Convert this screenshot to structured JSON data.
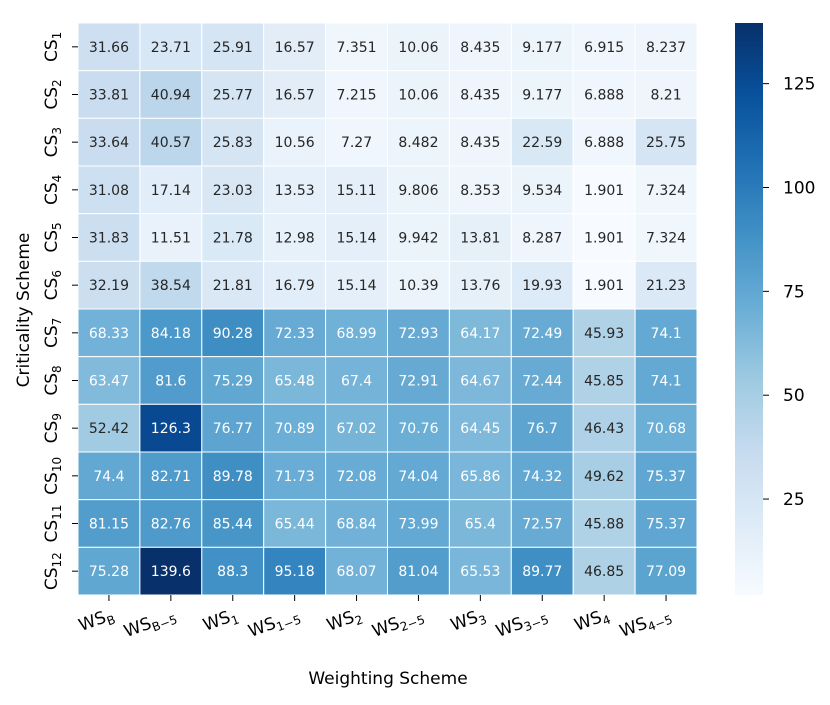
{
  "chart_data": {
    "type": "heatmap",
    "xlabel": "Weighting Scheme",
    "ylabel": "Criticality Scheme",
    "x_categories": [
      {
        "base": "WS",
        "sub": "B"
      },
      {
        "base": "WS",
        "sub": "B−5"
      },
      {
        "base": "WS",
        "sub": "1"
      },
      {
        "base": "WS",
        "sub": "1−5"
      },
      {
        "base": "WS",
        "sub": "2"
      },
      {
        "base": "WS",
        "sub": "2−5"
      },
      {
        "base": "WS",
        "sub": "3"
      },
      {
        "base": "WS",
        "sub": "3−5"
      },
      {
        "base": "WS",
        "sub": "4"
      },
      {
        "base": "WS",
        "sub": "4−5"
      }
    ],
    "y_categories": [
      {
        "base": "CS",
        "sub": "1"
      },
      {
        "base": "CS",
        "sub": "2"
      },
      {
        "base": "CS",
        "sub": "3"
      },
      {
        "base": "CS",
        "sub": "4"
      },
      {
        "base": "CS",
        "sub": "5"
      },
      {
        "base": "CS",
        "sub": "6"
      },
      {
        "base": "CS",
        "sub": "7"
      },
      {
        "base": "CS",
        "sub": "8"
      },
      {
        "base": "CS",
        "sub": "9"
      },
      {
        "base": "CS",
        "sub": "10"
      },
      {
        "base": "CS",
        "sub": "11"
      },
      {
        "base": "CS",
        "sub": "12"
      }
    ],
    "values": [
      [
        "31.66",
        "23.71",
        "25.91",
        "16.57",
        "7.351",
        "10.06",
        "8.435",
        "9.177",
        "6.915",
        "8.237"
      ],
      [
        "33.81",
        "40.94",
        "25.77",
        "16.57",
        "7.215",
        "10.06",
        "8.435",
        "9.177",
        "6.888",
        "8.21"
      ],
      [
        "33.64",
        "40.57",
        "25.83",
        "10.56",
        "7.27",
        "8.482",
        "8.435",
        "22.59",
        "6.888",
        "25.75"
      ],
      [
        "31.08",
        "17.14",
        "23.03",
        "13.53",
        "15.11",
        "9.806",
        "8.353",
        "9.534",
        "1.901",
        "7.324"
      ],
      [
        "31.83",
        "11.51",
        "21.78",
        "12.98",
        "15.14",
        "9.942",
        "13.81",
        "8.287",
        "1.901",
        "7.324"
      ],
      [
        "32.19",
        "38.54",
        "21.81",
        "16.79",
        "15.14",
        "10.39",
        "13.76",
        "19.93",
        "1.901",
        "21.23"
      ],
      [
        "68.33",
        "84.18",
        "90.28",
        "72.33",
        "68.99",
        "72.93",
        "64.17",
        "72.49",
        "45.93",
        "74.1"
      ],
      [
        "63.47",
        "81.6",
        "75.29",
        "65.48",
        "67.4",
        "72.91",
        "64.67",
        "72.44",
        "45.85",
        "74.1"
      ],
      [
        "52.42",
        "126.3",
        "76.77",
        "70.89",
        "67.02",
        "70.76",
        "64.45",
        "76.7",
        "46.43",
        "70.68"
      ],
      [
        "74.4",
        "82.71",
        "89.78",
        "71.73",
        "72.08",
        "74.04",
        "65.86",
        "74.32",
        "49.62",
        "75.37"
      ],
      [
        "81.15",
        "82.76",
        "85.44",
        "65.44",
        "68.84",
        "73.99",
        "65.4",
        "72.57",
        "45.88",
        "75.37"
      ],
      [
        "75.28",
        "139.6",
        "88.3",
        "95.18",
        "68.07",
        "81.04",
        "65.53",
        "89.77",
        "46.85",
        "77.09"
      ]
    ],
    "colorbar": {
      "colormap": "Blues",
      "vmin": 1.901,
      "vmax": 139.6,
      "ticks": [
        25,
        50,
        75,
        100,
        125
      ]
    },
    "cell_border_color": "#ffffff",
    "text_color_light": "#ffffff",
    "text_color_dark": "#262626"
  }
}
